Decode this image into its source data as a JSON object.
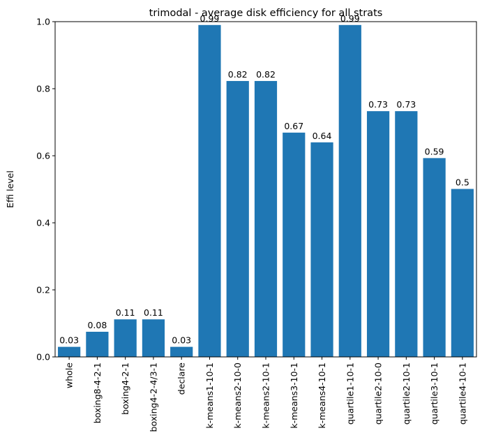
{
  "chart_data": {
    "type": "bar",
    "title": "trimodal - average disk efficiency for all strats",
    "xlabel": "",
    "ylabel": "Effi level",
    "ylim": [
      0,
      1.0
    ],
    "yticks": [
      "0.0",
      "0.2",
      "0.4",
      "0.6",
      "0.8",
      "1.0"
    ],
    "grid": false,
    "bar_color": "#1f77b4",
    "categories": [
      "whole",
      "boxing8-4-2-1",
      "boxing4-2-1",
      "boxing4-2-4/3-1",
      "declare",
      "k-means1-10-1",
      "k-means2-10-0",
      "k-means2-10-1",
      "k-means3-10-1",
      "k-means4-10-1",
      "quartile1-10-1",
      "quartile2-10-0",
      "quartile2-10-1",
      "quartile3-10-1",
      "quartile4-10-1"
    ],
    "values": [
      0.03,
      0.075,
      0.112,
      0.112,
      0.03,
      0.99,
      0.823,
      0.823,
      0.669,
      0.64,
      0.99,
      0.733,
      0.733,
      0.593,
      0.501
    ],
    "data_labels": [
      "0.03",
      "0.08",
      "0.11",
      "0.11",
      "0.03",
      "0.99",
      "0.82",
      "0.82",
      "0.67",
      "0.64",
      "0.99",
      "0.73",
      "0.73",
      "0.59",
      "0.5"
    ]
  }
}
